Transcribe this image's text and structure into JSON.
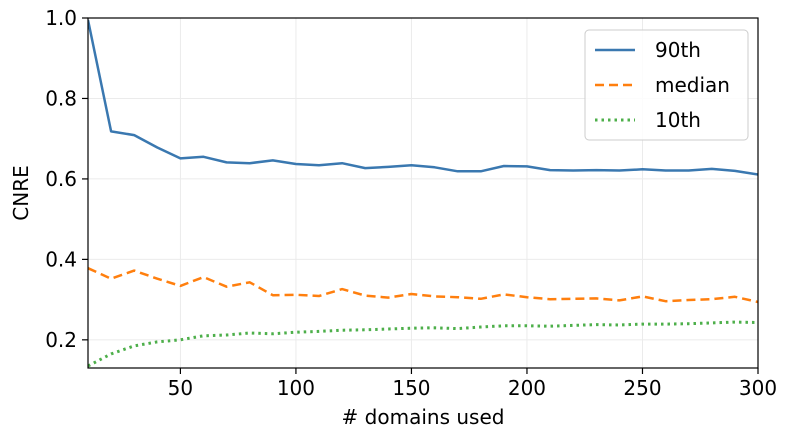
{
  "chart_data": {
    "type": "line",
    "title": "",
    "xlabel": "# domains used",
    "ylabel": "CNRE",
    "xlim": [
      10,
      300
    ],
    "ylim": [
      0.13,
      1.0
    ],
    "x_ticks": [
      50,
      100,
      150,
      200,
      250,
      300
    ],
    "y_ticks": [
      0.2,
      0.4,
      0.6,
      0.8,
      1.0
    ],
    "x_tick_labels": [
      "50",
      "100",
      "150",
      "200",
      "250",
      "300"
    ],
    "y_tick_labels": [
      "0.2",
      "0.4",
      "0.6",
      "0.8",
      "1.0"
    ],
    "grid": true,
    "legend_position": "top-right",
    "x": [
      10,
      20,
      30,
      40,
      50,
      60,
      70,
      80,
      90,
      100,
      110,
      120,
      130,
      140,
      150,
      160,
      170,
      180,
      190,
      200,
      210,
      220,
      230,
      240,
      250,
      260,
      270,
      280,
      290,
      300
    ],
    "series": [
      {
        "name": "90th",
        "color": "#3a78b0",
        "style": "solid",
        "values": [
          0.995,
          0.718,
          0.709,
          0.678,
          0.651,
          0.655,
          0.641,
          0.639,
          0.646,
          0.637,
          0.634,
          0.639,
          0.627,
          0.63,
          0.634,
          0.629,
          0.619,
          0.619,
          0.632,
          0.631,
          0.622,
          0.621,
          0.622,
          0.621,
          0.624,
          0.621,
          0.621,
          0.625,
          0.62,
          0.611
        ]
      },
      {
        "name": "median",
        "color": "#ff7f0e",
        "style": "dashed",
        "values": [
          0.378,
          0.352,
          0.372,
          0.352,
          0.334,
          0.356,
          0.332,
          0.343,
          0.311,
          0.312,
          0.309,
          0.326,
          0.31,
          0.305,
          0.314,
          0.308,
          0.306,
          0.302,
          0.313,
          0.306,
          0.301,
          0.302,
          0.303,
          0.298,
          0.308,
          0.296,
          0.299,
          0.301,
          0.307,
          0.294
        ]
      },
      {
        "name": "10th",
        "color": "#4daf4a",
        "style": "dotted",
        "values": [
          0.135,
          0.165,
          0.185,
          0.195,
          0.2,
          0.21,
          0.212,
          0.217,
          0.215,
          0.219,
          0.221,
          0.224,
          0.225,
          0.227,
          0.229,
          0.23,
          0.228,
          0.232,
          0.235,
          0.235,
          0.234,
          0.236,
          0.238,
          0.237,
          0.239,
          0.239,
          0.24,
          0.242,
          0.244,
          0.243
        ]
      }
    ]
  }
}
